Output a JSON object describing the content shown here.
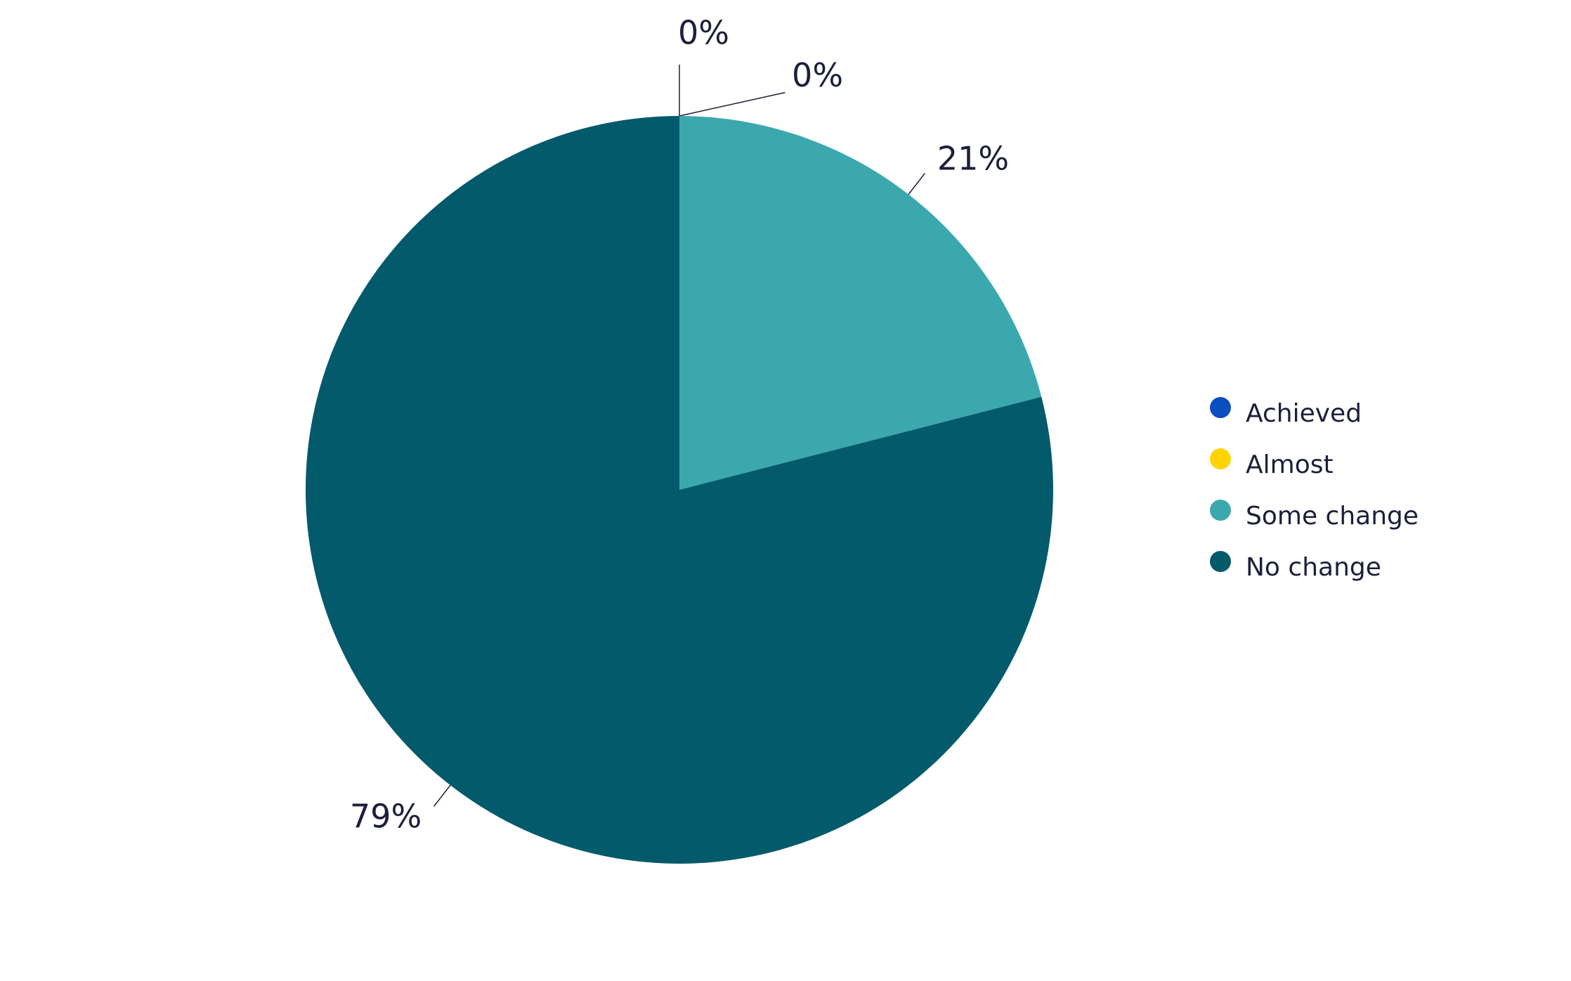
{
  "chart_data": {
    "type": "pie",
    "categories": [
      "Achieved",
      "Almost",
      "Some change",
      "No change"
    ],
    "values": [
      0,
      0,
      21,
      79
    ],
    "value_labels": [
      "0%",
      "0%",
      "21%",
      "79%"
    ],
    "colors": [
      "#0a4fbf",
      "#ffd400",
      "#3ba8ad",
      "#025a6b"
    ],
    "legend": "right"
  }
}
